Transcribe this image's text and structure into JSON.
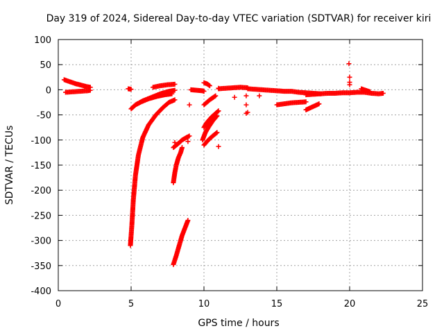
{
  "chart_data": {
    "type": "scatter",
    "title": "Day 319 of 2024, Sidereal Day-to-day VTEC variation (SDTVAR) for receiver kiri",
    "xlabel": "GPS time / hours",
    "ylabel": "SDTVAR / TECUs",
    "xlim": [
      0,
      25
    ],
    "ylim": [
      -400,
      100
    ],
    "xticks": [
      0,
      5,
      10,
      15,
      20,
      25
    ],
    "yticks": [
      100,
      50,
      0,
      -50,
      -100,
      -150,
      -200,
      -250,
      -300,
      -350,
      -400
    ],
    "grid": true,
    "marker": "+",
    "color": "#ff0000",
    "segments": [
      {
        "x": [
          0.4,
          0.8,
          1.2,
          1.6,
          2.0,
          2.2
        ],
        "y": [
          20,
          16,
          12,
          9,
          6,
          5
        ]
      },
      {
        "x": [
          0.5,
          1.0,
          1.5,
          2.0,
          2.2
        ],
        "y": [
          -5,
          -4,
          -3,
          -2,
          -1
        ]
      },
      {
        "x": [
          4.8,
          5.0
        ],
        "y": [
          2,
          1
        ]
      },
      {
        "x": [
          4.95,
          5.05,
          5.15,
          5.3,
          5.5,
          5.8,
          6.2,
          6.7,
          7.2,
          7.6,
          8.0
        ],
        "y": [
          -310,
          -270,
          -220,
          -170,
          -130,
          -95,
          -70,
          -50,
          -35,
          -25,
          -20
        ]
      },
      {
        "x": [
          5.0,
          5.3,
          5.7,
          6.2,
          6.8,
          7.3,
          7.8
        ],
        "y": [
          -38,
          -30,
          -24,
          -18,
          -13,
          -10,
          -8
        ]
      },
      {
        "x": [
          5.3,
          5.8,
          6.4,
          7.0,
          7.6,
          8.0
        ],
        "y": [
          -30,
          -22,
          -15,
          -8,
          -3,
          -1
        ]
      },
      {
        "x": [
          6.5,
          7.0,
          7.5,
          8.0
        ],
        "y": [
          5,
          8,
          10,
          11
        ]
      },
      {
        "x": [
          7.9,
          8.1,
          8.3,
          8.5,
          8.7,
          8.9
        ],
        "y": [
          -348,
          -330,
          -310,
          -290,
          -275,
          -260
        ]
      },
      {
        "x": [
          7.9,
          8.0,
          8.1,
          8.25,
          8.4,
          8.5
        ],
        "y": [
          -185,
          -165,
          -150,
          -135,
          -125,
          -115
        ]
      },
      {
        "x": [
          7.9,
          8.2,
          8.5,
          8.8,
          9.0
        ],
        "y": [
          -115,
          -108,
          -100,
          -95,
          -92
        ]
      },
      {
        "x": [
          9.1,
          9.5,
          9.9,
          10.0
        ],
        "y": [
          0,
          -1,
          -2,
          -3
        ]
      },
      {
        "x": [
          9.9,
          10.1,
          10.3,
          10.6,
          10.9
        ],
        "y": [
          -100,
          -85,
          -75,
          -62,
          -52
        ]
      },
      {
        "x": [
          10.0,
          10.3,
          10.6,
          10.9
        ],
        "y": [
          -110,
          -100,
          -92,
          -85
        ]
      },
      {
        "x": [
          10.0,
          10.2,
          10.5,
          10.8,
          11.0
        ],
        "y": [
          -75,
          -65,
          -55,
          -47,
          -42
        ]
      },
      {
        "x": [
          10.0,
          10.4,
          10.8
        ],
        "y": [
          -30,
          -20,
          -12
        ]
      },
      {
        "x": [
          10.0,
          10.2,
          10.4
        ],
        "y": [
          14,
          12,
          8
        ]
      },
      {
        "x": [
          11.0,
          11.5,
          12.0,
          12.5,
          13.0
        ],
        "y": [
          2,
          3,
          4,
          5,
          4
        ]
      },
      {
        "x": [
          13.0,
          13.5,
          14.0,
          14.5,
          15.0,
          15.5,
          16.0,
          16.5,
          17.0,
          17.5,
          18.0
        ],
        "y": [
          2,
          1,
          0,
          -1,
          -2,
          -3,
          -3,
          -5,
          -6,
          -7,
          -8
        ]
      },
      {
        "x": [
          15.0,
          15.5,
          16.0,
          16.5,
          17.0
        ],
        "y": [
          -30,
          -28,
          -26,
          -25,
          -24
        ]
      },
      {
        "x": [
          17.0,
          17.3,
          17.6,
          17.9
        ],
        "y": [
          -40,
          -36,
          -32,
          -28
        ]
      },
      {
        "x": [
          17.0,
          17.5,
          18.0,
          18.5,
          19.0,
          19.5,
          20.0,
          20.5,
          21.0,
          21.5,
          22.0,
          22.3
        ],
        "y": [
          -10,
          -9,
          -8,
          -7,
          -7,
          -6,
          -6,
          -5,
          -5,
          -7,
          -8,
          -7
        ]
      },
      {
        "x": [
          20.8,
          21.1,
          21.4
        ],
        "y": [
          2,
          -1,
          -4
        ]
      }
    ],
    "isolated_points": [
      {
        "x": [
          9.0,
          8.9,
          8.0,
          12.1,
          12.9,
          12.9,
          12.9,
          13.8,
          11.0,
          11.0,
          19.95,
          20.0,
          20.0,
          20.0,
          13.0
        ],
        "y": [
          -30,
          -103,
          -105,
          -15,
          -12,
          -30,
          -47,
          -12,
          3,
          -113,
          52,
          25,
          15,
          10,
          -45
        ]
      }
    ]
  }
}
